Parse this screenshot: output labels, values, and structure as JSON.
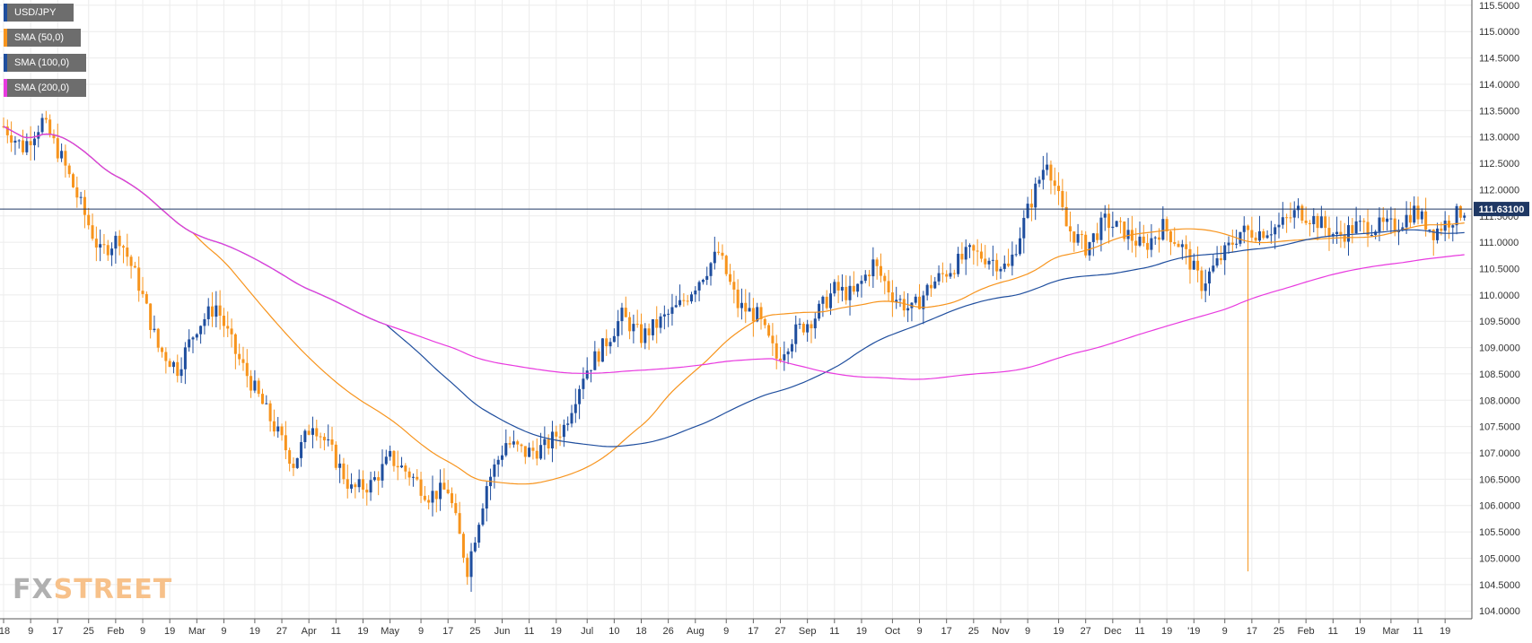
{
  "chart_data": {
    "type": "candlestick",
    "symbol": "USD/JPY",
    "legend": [
      {
        "label": "USD/JPY",
        "color": "#1f4e9e"
      },
      {
        "label": "SMA (50,0)",
        "color": "#f7941d"
      },
      {
        "label": "SMA (100,0)",
        "color": "#1f4e9e"
      },
      {
        "label": "SMA (200,0)",
        "color": "#e83adf"
      }
    ],
    "colors": {
      "up": "#1f4e9e",
      "down": "#f7941d",
      "sma50": "#f7941d",
      "sma100": "#1f4e9e",
      "sma200": "#e83adf",
      "current_line": "#1f3864",
      "grid": "#ececec"
    },
    "current_price": "111.63100",
    "current_price_value": 111.631,
    "y_axis": {
      "min": 103.85,
      "max": 115.6,
      "ticks": [
        "115.5000",
        "115.0000",
        "114.5000",
        "114.0000",
        "113.5000",
        "113.0000",
        "112.5000",
        "112.0000",
        "111.5000",
        "111.0000",
        "110.5000",
        "110.0000",
        "109.5000",
        "109.0000",
        "108.5000",
        "108.0000",
        "107.5000",
        "107.0000",
        "106.5000",
        "106.0000",
        "105.5000",
        "105.0000",
        "104.5000",
        "104.0000"
      ]
    },
    "x_axis": {
      "labels": [
        "'18",
        "9",
        "17",
        "25",
        "Feb",
        "9",
        "19",
        "Mar",
        "9",
        "19",
        "27",
        "Apr",
        "11",
        "19",
        "May",
        "9",
        "17",
        "25",
        "Jun",
        "11",
        "19",
        "Jul",
        "10",
        "18",
        "26",
        "Aug",
        "9",
        "17",
        "27",
        "Sep",
        "11",
        "19",
        "Oct",
        "9",
        "17",
        "25",
        "Nov",
        "9",
        "19",
        "27",
        "Dec",
        "11",
        "19",
        "'19",
        "9",
        "17",
        "25",
        "Feb",
        "11",
        "19",
        "Mar",
        "11",
        "19"
      ],
      "count_total": 379
    },
    "price_path": [
      [
        0,
        113.2
      ],
      [
        5,
        112.8
      ],
      [
        10,
        113.3
      ],
      [
        15,
        112.6
      ],
      [
        20,
        111.7
      ],
      [
        25,
        110.8
      ],
      [
        30,
        111.1
      ],
      [
        35,
        110.2
      ],
      [
        40,
        109.0
      ],
      [
        45,
        108.6
      ],
      [
        50,
        109.4
      ],
      [
        55,
        109.8
      ],
      [
        60,
        108.9
      ],
      [
        65,
        108.2
      ],
      [
        70,
        107.5
      ],
      [
        75,
        106.8
      ],
      [
        80,
        107.6
      ],
      [
        85,
        107.0
      ],
      [
        90,
        106.3
      ],
      [
        95,
        106.4
      ],
      [
        100,
        106.9
      ],
      [
        105,
        106.6
      ],
      [
        110,
        106.2
      ],
      [
        115,
        106.3
      ],
      [
        120,
        104.8
      ],
      [
        125,
        106.4
      ],
      [
        130,
        107.2
      ],
      [
        135,
        107.0
      ],
      [
        140,
        107.1
      ],
      [
        145,
        107.5
      ],
      [
        150,
        108.5
      ],
      [
        155,
        109.0
      ],
      [
        160,
        109.6
      ],
      [
        165,
        109.2
      ],
      [
        170,
        109.5
      ],
      [
        175,
        109.8
      ],
      [
        180,
        110.3
      ],
      [
        185,
        110.8
      ],
      [
        190,
        109.8
      ],
      [
        195,
        109.6
      ],
      [
        200,
        108.8
      ],
      [
        205,
        109.3
      ],
      [
        210,
        109.6
      ],
      [
        215,
        110.1
      ],
      [
        220,
        110.0
      ],
      [
        225,
        110.6
      ],
      [
        230,
        110.0
      ],
      [
        235,
        109.7
      ],
      [
        240,
        110.2
      ],
      [
        245,
        110.5
      ],
      [
        250,
        110.8
      ],
      [
        255,
        110.7
      ],
      [
        260,
        110.5
      ],
      [
        265,
        111.6
      ],
      [
        270,
        112.6
      ],
      [
        275,
        111.3
      ],
      [
        280,
        110.9
      ],
      [
        285,
        111.4
      ],
      [
        290,
        111.2
      ],
      [
        295,
        110.9
      ],
      [
        300,
        111.3
      ],
      [
        305,
        110.9
      ],
      [
        310,
        110.2
      ],
      [
        315,
        110.7
      ],
      [
        320,
        111.2
      ],
      [
        325,
        111.2
      ],
      [
        330,
        111.3
      ],
      [
        335,
        111.6
      ],
      [
        340,
        111.4
      ],
      [
        345,
        111.1
      ],
      [
        350,
        111.3
      ],
      [
        355,
        111.3
      ],
      [
        360,
        111.3
      ],
      [
        365,
        111.6
      ],
      [
        370,
        111.2
      ],
      [
        378,
        111.63
      ]
    ]
  },
  "branding": {
    "fx": "FX",
    "street": "STREET"
  }
}
